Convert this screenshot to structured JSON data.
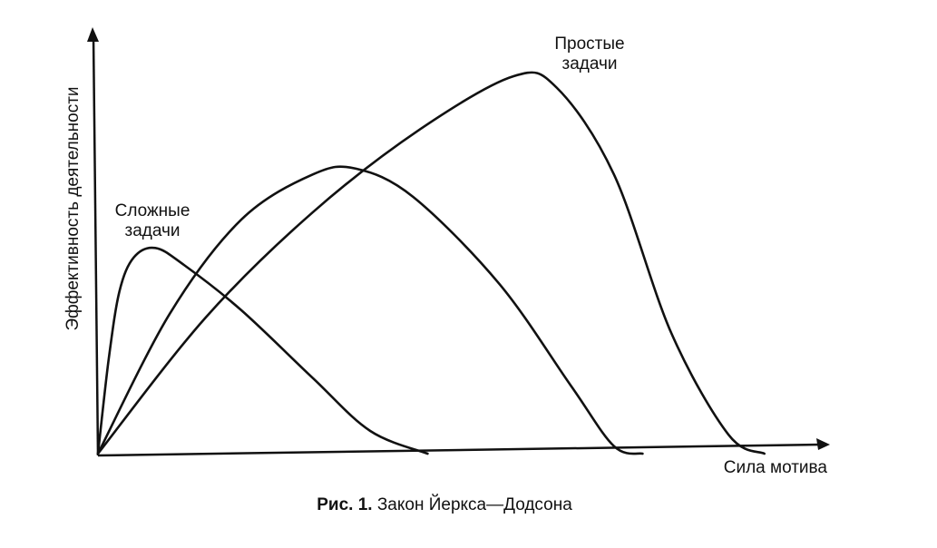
{
  "chart_data": {
    "type": "line",
    "xlabel": "Сила мотива",
    "ylabel": "Эффективность деятельности",
    "xlim": [
      0,
      100
    ],
    "ylim": [
      0,
      100
    ],
    "grid": false,
    "series": [
      {
        "name": "Сложные задачи",
        "points": [
          [
            0,
            0
          ],
          [
            1.5,
            25
          ],
          [
            3,
            43
          ],
          [
            5,
            52
          ],
          [
            8,
            54.5
          ],
          [
            12,
            50
          ],
          [
            20,
            38
          ],
          [
            30,
            20
          ],
          [
            38,
            6
          ],
          [
            46,
            0
          ]
        ]
      },
      {
        "name": "",
        "points": [
          [
            0,
            0
          ],
          [
            10,
            37
          ],
          [
            20,
            62
          ],
          [
            30,
            74
          ],
          [
            36,
            75.5
          ],
          [
            44,
            68
          ],
          [
            56,
            45
          ],
          [
            66,
            18
          ],
          [
            72,
            2
          ],
          [
            76,
            0
          ]
        ]
      },
      {
        "name": "Простые задачи",
        "points": [
          [
            0,
            0
          ],
          [
            15,
            36
          ],
          [
            30,
            64
          ],
          [
            45,
            86
          ],
          [
            58,
            100
          ],
          [
            64,
            97
          ],
          [
            72,
            74
          ],
          [
            80,
            32
          ],
          [
            88,
            5
          ],
          [
            93,
            0
          ]
        ]
      }
    ]
  },
  "caption": {
    "number": "Рис. 1.",
    "text": "Закон Йеркса—Додсона"
  }
}
